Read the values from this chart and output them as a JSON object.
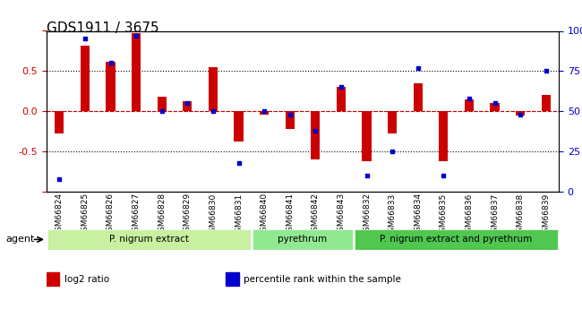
{
  "title": "GDS1911 / 3675",
  "samples": [
    "GSM66824",
    "GSM66825",
    "GSM66826",
    "GSM66827",
    "GSM66828",
    "GSM66829",
    "GSM66830",
    "GSM66831",
    "GSM66840",
    "GSM66841",
    "GSM66842",
    "GSM66843",
    "GSM66832",
    "GSM66833",
    "GSM66834",
    "GSM66835",
    "GSM66836",
    "GSM66837",
    "GSM66838",
    "GSM66839"
  ],
  "log2_ratio": [
    -0.28,
    0.82,
    0.62,
    0.97,
    0.18,
    0.12,
    0.55,
    -0.38,
    -0.04,
    -0.22,
    -0.6,
    0.3,
    -0.62,
    -0.28,
    0.35,
    -0.62,
    0.15,
    0.1,
    -0.05,
    0.2
  ],
  "percentile": [
    8,
    95,
    80,
    97,
    50,
    55,
    50,
    18,
    50,
    48,
    38,
    65,
    10,
    25,
    77,
    10,
    58,
    55,
    48,
    75
  ],
  "groups": [
    {
      "label": "P. nigrum extract",
      "start": 0,
      "end": 7,
      "color": "#c8f0a0"
    },
    {
      "label": "pyrethrum",
      "start": 8,
      "end": 11,
      "color": "#90e890"
    },
    {
      "label": "P. nigrum extract and pyrethrum",
      "start": 12,
      "end": 19,
      "color": "#50c850"
    }
  ],
  "bar_color": "#cc0000",
  "dot_color": "#0000cc",
  "ylim_left": [
    -1.0,
    1.0
  ],
  "ylim_right": [
    0,
    100
  ],
  "yticks_left": [
    -1.0,
    -0.5,
    0.0,
    0.5,
    1.0
  ],
  "yticks_right": [
    0,
    25,
    50,
    75,
    100
  ],
  "hlines": [
    0.5,
    0.0,
    -0.5
  ],
  "legend_items": [
    {
      "color": "#cc0000",
      "label": "log2 ratio"
    },
    {
      "color": "#0000cc",
      "label": "percentile rank within the sample"
    }
  ],
  "agent_label": "agent",
  "bg_color": "#f0f0f0"
}
